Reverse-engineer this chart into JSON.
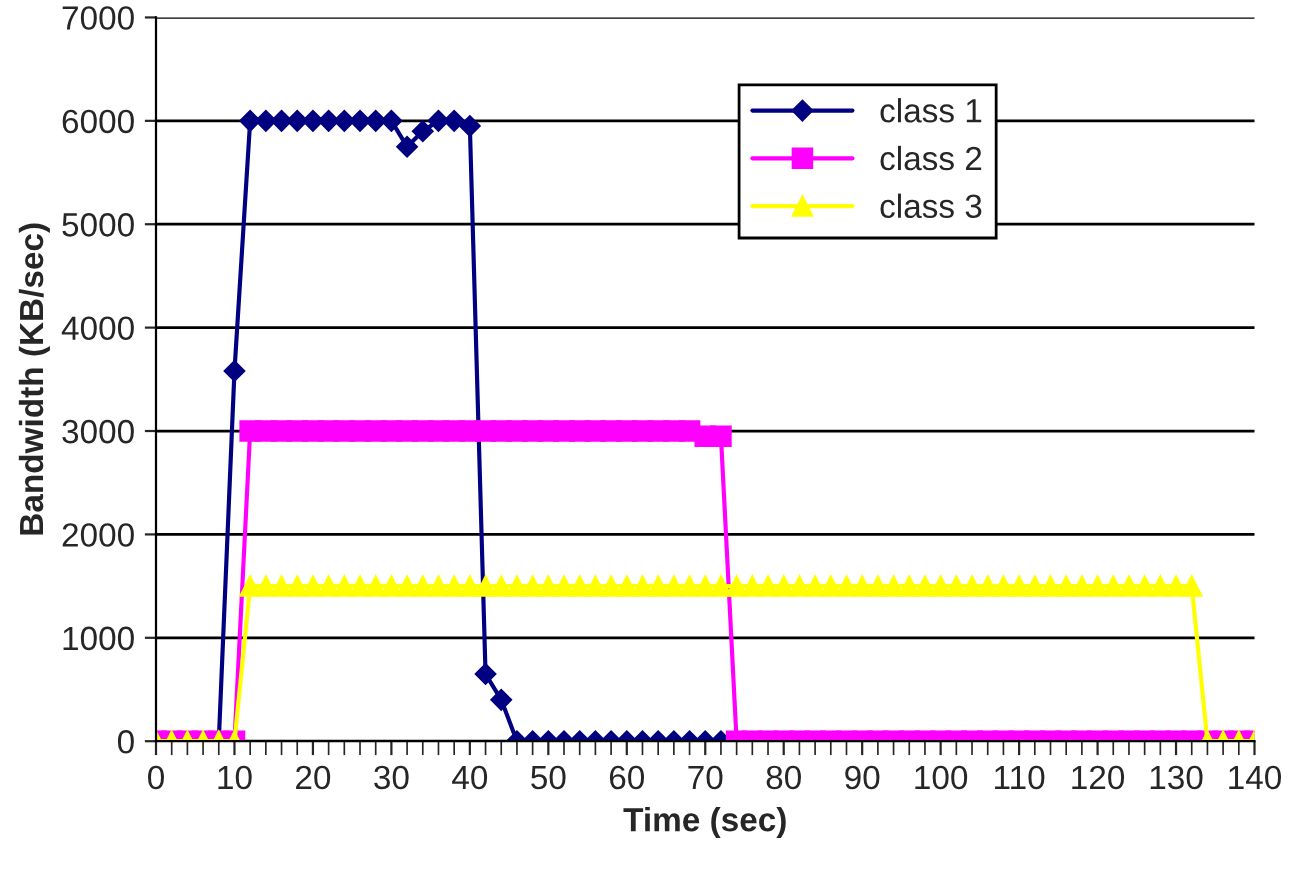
{
  "chart_data": {
    "type": "line",
    "xlabel": "Time (sec)",
    "ylabel": "Bandwidth (KB/sec)",
    "x": [
      0,
      2,
      4,
      6,
      8,
      10,
      12,
      14,
      16,
      18,
      20,
      22,
      24,
      26,
      28,
      30,
      32,
      34,
      36,
      38,
      40,
      42,
      44,
      46,
      48,
      50,
      52,
      54,
      56,
      58,
      60,
      62,
      64,
      66,
      68,
      70,
      72,
      74,
      76,
      78,
      80,
      82,
      84,
      86,
      88,
      90,
      92,
      94,
      96,
      98,
      100,
      102,
      104,
      106,
      108,
      110,
      112,
      114,
      116,
      118,
      120,
      122,
      124,
      126,
      128,
      130,
      132,
      134,
      136,
      138,
      140
    ],
    "series": [
      {
        "name": "class 1",
        "color": "#000080",
        "marker": "diamond",
        "values": [
          null,
          null,
          null,
          null,
          0,
          3580,
          6000,
          6000,
          6000,
          6000,
          6000,
          6000,
          6000,
          6000,
          6000,
          6000,
          5750,
          5900,
          6000,
          6000,
          5950,
          650,
          400,
          0,
          0,
          0,
          0,
          0,
          0,
          0,
          0,
          0,
          0,
          0,
          0,
          0,
          0,
          null,
          null,
          null,
          null,
          null,
          null,
          null,
          null,
          null,
          null,
          null,
          null,
          null,
          null,
          null,
          null,
          null,
          null,
          null,
          null,
          null,
          null,
          null,
          null,
          null,
          null,
          null,
          null,
          null,
          null,
          null,
          null,
          null,
          null
        ]
      },
      {
        "name": "class 2",
        "color": "#ff00ff",
        "marker": "square",
        "values": [
          0,
          0,
          0,
          0,
          0,
          0,
          3000,
          3000,
          3000,
          3000,
          3000,
          3000,
          3000,
          3000,
          3000,
          3000,
          3000,
          3000,
          3000,
          3000,
          3000,
          3000,
          3000,
          3000,
          3000,
          3000,
          3000,
          3000,
          3000,
          3000,
          3000,
          3000,
          3000,
          3000,
          3000,
          2950,
          2950,
          0,
          0,
          0,
          0,
          0,
          0,
          0,
          0,
          0,
          0,
          0,
          0,
          0,
          0,
          0,
          0,
          0,
          0,
          0,
          0,
          0,
          0,
          0,
          0,
          0,
          0,
          0,
          0,
          0,
          0,
          0,
          0,
          0,
          0
        ]
      },
      {
        "name": "class 3",
        "color": "#ffff00",
        "marker": "triangle",
        "values": [
          0,
          0,
          0,
          0,
          0,
          0,
          1500,
          1500,
          1500,
          1500,
          1500,
          1500,
          1500,
          1500,
          1500,
          1500,
          1500,
          1500,
          1500,
          1500,
          1500,
          1500,
          1500,
          1500,
          1500,
          1500,
          1500,
          1500,
          1500,
          1500,
          1500,
          1500,
          1500,
          1500,
          1500,
          1500,
          1500,
          1500,
          1500,
          1500,
          1500,
          1500,
          1500,
          1500,
          1500,
          1500,
          1500,
          1500,
          1500,
          1500,
          1500,
          1500,
          1500,
          1500,
          1500,
          1500,
          1500,
          1500,
          1500,
          1500,
          1500,
          1500,
          1500,
          1500,
          1500,
          1500,
          1500,
          0,
          0,
          0,
          0
        ]
      }
    ],
    "xlim": [
      0,
      140
    ],
    "xticks": [
      0,
      10,
      20,
      30,
      40,
      50,
      60,
      70,
      80,
      90,
      100,
      110,
      120,
      130,
      140
    ],
    "ylim": [
      0,
      7000
    ],
    "yticks": [
      0,
      1000,
      2000,
      3000,
      4000,
      5000,
      6000,
      7000
    ],
    "grid": "y",
    "legend": "top right"
  }
}
